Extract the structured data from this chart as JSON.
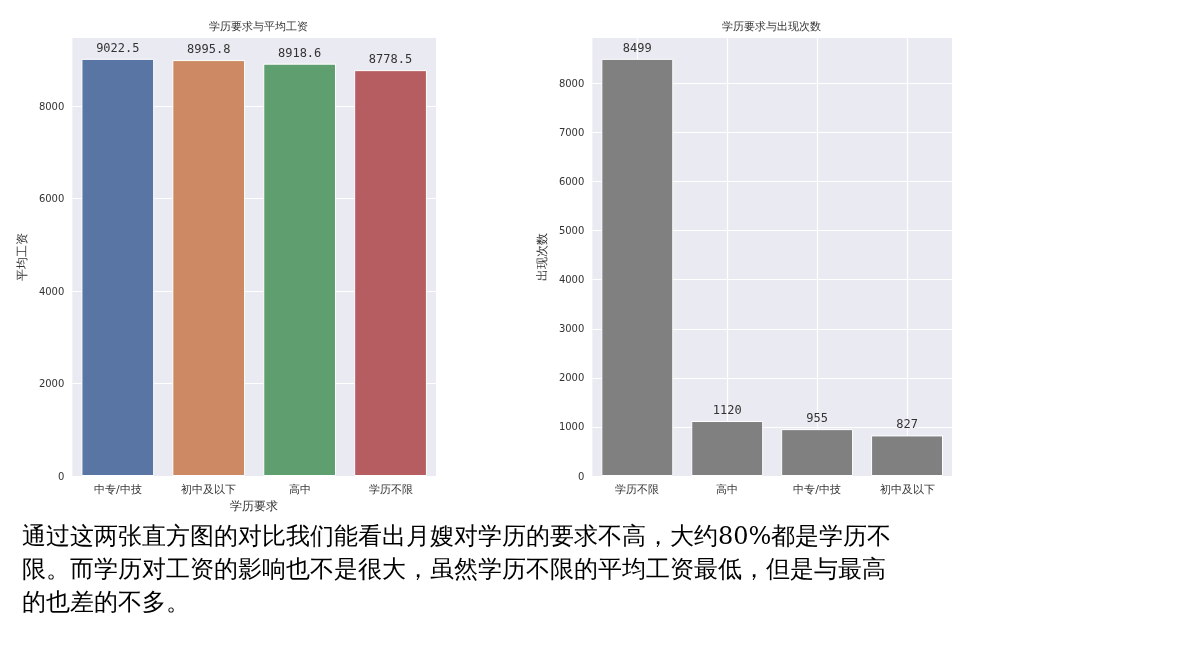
{
  "chart_data": [
    {
      "type": "bar",
      "title": "学历要求与平均工资",
      "xlabel": "学历要求",
      "ylabel": "平均工资",
      "categories": [
        "中专/中技",
        "初中及以下",
        "高中",
        "学历不限"
      ],
      "values": [
        9022.5,
        8995.8,
        8918.6,
        8778.5
      ],
      "colors": [
        "#5875a4",
        "#cc8963",
        "#5f9e6e",
        "#b55d60"
      ],
      "ylim": [
        0,
        9474
      ],
      "yticks": [
        0,
        2000,
        4000,
        6000,
        8000
      ],
      "grid": "y",
      "data_labels": true
    },
    {
      "type": "bar",
      "title": "学历要求与出现次数",
      "ylabel": "出现次数",
      "categories": [
        "学历不限",
        "高中",
        "中专/中技",
        "初中及以下"
      ],
      "values": [
        8499,
        1120,
        955,
        827
      ],
      "color": "#808080",
      "ylim": [
        0,
        8924
      ],
      "yticks": [
        0,
        1000,
        2000,
        3000,
        4000,
        5000,
        6000,
        7000,
        8000
      ],
      "grid": true,
      "data_labels": true
    },
    {
      "type": "other",
      "annotations": [
        "通过这两张直方图的对比我们能看出月嫂对学历的要求不高，大约80%都是学历不限。而学历对工资的影响也不是很大，虽然学历不限的平均工资最低，但是与最高的也差的不多。"
      ]
    }
  ]
}
